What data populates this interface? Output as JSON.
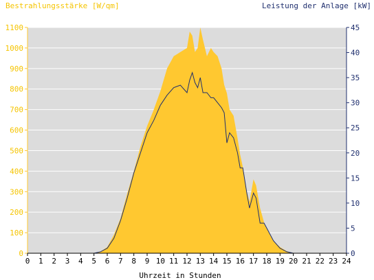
{
  "chart_data": {
    "type": "area",
    "title_left": "Bestrahlungsstärke [W/qm]",
    "title_right": "Leistung der Anlage [kW]",
    "xlabel": "Uhrzeit in Stunden",
    "x_ticks": [
      "0",
      "1",
      "2",
      "3",
      "4",
      "5",
      "6",
      "7",
      "8",
      "9",
      "10",
      "11",
      "12",
      "13",
      "14",
      "15",
      "16",
      "17",
      "18",
      "19",
      "20",
      "21",
      "22",
      "23",
      "24"
    ],
    "xlim": [
      0,
      24
    ],
    "y_left_ticks": [
      "0",
      "100",
      "200",
      "300",
      "400",
      "500",
      "600",
      "700",
      "800",
      "900",
      "1000",
      "1100"
    ],
    "ylim_left": [
      0,
      1100
    ],
    "y_right_ticks": [
      "0",
      "5",
      "10",
      "15",
      "20",
      "25",
      "30",
      "35",
      "40",
      "45"
    ],
    "ylim_right": [
      0,
      45
    ],
    "colors": {
      "irradiance": "#ffc830",
      "power": "#1f2f6e",
      "plot_bg": "#dcdcdc"
    },
    "series": [
      {
        "name": "Bestrahlungsstärke",
        "axis": "left",
        "x": [
          0,
          5,
          5.5,
          6,
          6.5,
          7,
          7.5,
          8,
          8.5,
          9,
          9.5,
          10,
          10.5,
          11,
          11.5,
          12,
          12.2,
          12.4,
          12.6,
          12.8,
          13,
          13.2,
          13.5,
          13.8,
          14,
          14.3,
          14.6,
          14.8,
          15,
          15.2,
          15.5,
          15.8,
          16,
          16.2,
          16.5,
          16.7,
          17,
          17.2,
          17.5,
          17.8,
          18,
          18.5,
          19,
          19.5,
          20,
          24
        ],
        "values": [
          0,
          0,
          8,
          30,
          90,
          170,
          290,
          400,
          520,
          620,
          700,
          790,
          900,
          960,
          980,
          1000,
          1080,
          1060,
          980,
          1000,
          1100,
          1040,
          960,
          1000,
          980,
          960,
          900,
          820,
          780,
          700,
          670,
          560,
          480,
          420,
          300,
          250,
          360,
          330,
          220,
          150,
          120,
          60,
          30,
          10,
          0,
          0
        ]
      },
      {
        "name": "Leistung der Anlage",
        "axis": "right",
        "x": [
          0,
          5,
          5.5,
          6,
          6.5,
          7,
          7.5,
          8,
          8.5,
          9,
          9.5,
          10,
          10.5,
          11,
          11.5,
          12,
          12.2,
          12.4,
          12.6,
          12.8,
          13,
          13.2,
          13.5,
          13.8,
          14,
          14.3,
          14.6,
          14.8,
          15,
          15.2,
          15.5,
          15.8,
          16,
          16.2,
          16.5,
          16.7,
          17,
          17.2,
          17.5,
          17.8,
          18,
          18.5,
          19,
          19.5,
          20,
          24
        ],
        "values": [
          0,
          0,
          0.3,
          1,
          3,
          6.5,
          11,
          16,
          20,
          24,
          26.5,
          29.5,
          31.5,
          33,
          33.5,
          32,
          34.5,
          36,
          34,
          33,
          35,
          32,
          32,
          31,
          31,
          30,
          29,
          28,
          22,
          24,
          23,
          20,
          17,
          17,
          12,
          9,
          12,
          11,
          6,
          6,
          5,
          2.5,
          1,
          0.3,
          0,
          0
        ]
      }
    ]
  }
}
